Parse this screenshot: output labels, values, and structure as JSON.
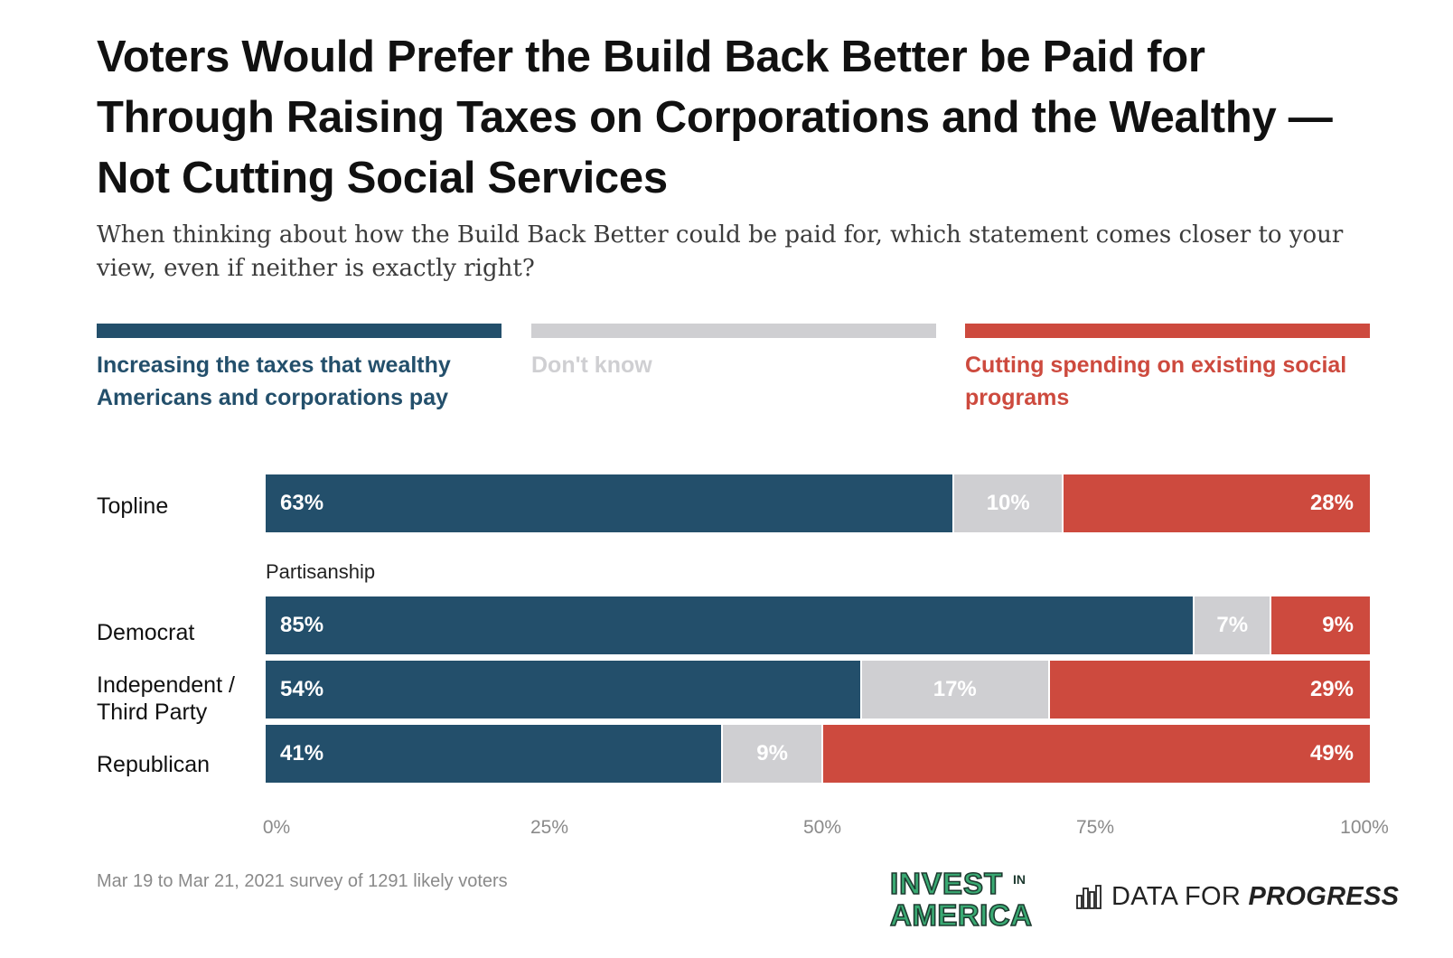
{
  "title": "Voters Would Prefer the Build Back Better be Paid for Through Raising Taxes on Corporations and the Wealthy — Not Cutting Social Services",
  "subtitle": "When thinking about how the Build Back Better could be paid for, which statement comes closer to your view, even if neither is exactly right?",
  "colors": {
    "pay": "#234f6b",
    "dont_know": "#cfcfd2",
    "cut": "#cd4a3e"
  },
  "legend": [
    {
      "label": "Increasing the taxes that wealthy Americans and corporations pay",
      "color": "#234f6b"
    },
    {
      "label": "Don't know",
      "color": "#cfcfd2"
    },
    {
      "label": "Cutting spending on existing social programs",
      "color": "#cd4a3e"
    }
  ],
  "chart_data": {
    "type": "bar",
    "orientation": "horizontal",
    "stacked": true,
    "categories": [
      "Topline",
      "Democrat",
      "Independent / Third Party",
      "Republican"
    ],
    "group_label": "Partisanship",
    "series": [
      {
        "name": "Increasing the taxes that wealthy Americans and corporations pay",
        "values": [
          63,
          85,
          54,
          41
        ],
        "labels": [
          "63%",
          "85%",
          "54%",
          "41%"
        ]
      },
      {
        "name": "Don't know",
        "values": [
          10,
          7,
          17,
          9
        ],
        "labels": [
          "10%",
          "7%",
          "17%",
          "9%"
        ]
      },
      {
        "name": "Cutting spending on existing social programs",
        "values": [
          28,
          9,
          29,
          49
        ],
        "labels": [
          "28%",
          "9%",
          "29%",
          "49%"
        ]
      }
    ],
    "xlim": [
      0,
      100
    ],
    "x_ticks": [
      "0%",
      "25%",
      "50%",
      "75%",
      "100%"
    ],
    "legend_position": "top"
  },
  "footnote": "Mar 19 to Mar 21, 2021 survey of 1291 likely voters",
  "logos": {
    "invest_line1": "INVEST",
    "invest_in": "IN",
    "invest_line2": "AMERICA",
    "dfp_prefix": "DATA FOR ",
    "dfp_suffix": "PROGRESS"
  }
}
